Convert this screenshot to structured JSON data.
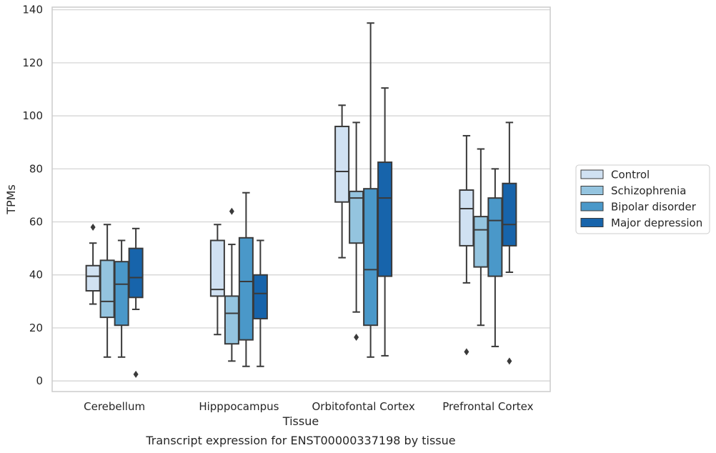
{
  "chart_data": {
    "type": "box",
    "title": "",
    "xlabel": "Tissue",
    "ylabel": "TPMs",
    "caption": "Transcript expression for ENST00000337198 by tissue",
    "categories": [
      "Cerebellum",
      "Hipppocampus",
      "Orbitofontal Cortex",
      "Prefrontal Cortex"
    ],
    "ylim": [
      -4,
      141
    ],
    "yticks": [
      0,
      20,
      40,
      60,
      80,
      100,
      120,
      140
    ],
    "grid": true,
    "legend_position": "right",
    "series": [
      {
        "name": "Control",
        "color": "#d0e1f2",
        "boxes": [
          {
            "whislo": 29,
            "q1": 34,
            "med": 39.5,
            "q3": 43.5,
            "whishi": 52,
            "fliers": [
              58
            ]
          },
          {
            "whislo": 17.5,
            "q1": 32,
            "med": 34.5,
            "q3": 53,
            "whishi": 59,
            "fliers": []
          },
          {
            "whislo": 46.5,
            "q1": 67.5,
            "med": 79,
            "q3": 96,
            "whishi": 104,
            "fliers": []
          },
          {
            "whislo": 37,
            "q1": 51,
            "med": 65,
            "q3": 72,
            "whishi": 92.5,
            "fliers": [
              11
            ]
          }
        ]
      },
      {
        "name": "Schizophrenia",
        "color": "#94c4df",
        "boxes": [
          {
            "whislo": 9,
            "q1": 24,
            "med": 30,
            "q3": 45.5,
            "whishi": 59,
            "fliers": []
          },
          {
            "whislo": 7.5,
            "q1": 14,
            "med": 25.5,
            "q3": 32,
            "whishi": 51.5,
            "fliers": [
              64
            ]
          },
          {
            "whislo": 26,
            "q1": 52,
            "med": 69,
            "q3": 71.5,
            "whishi": 97.5,
            "fliers": [
              16.5
            ]
          },
          {
            "whislo": 21,
            "q1": 43,
            "med": 57,
            "q3": 62,
            "whishi": 87.5,
            "fliers": []
          }
        ]
      },
      {
        "name": "Bipolar disorder",
        "color": "#4a98c9",
        "boxes": [
          {
            "whislo": 9,
            "q1": 21,
            "med": 36.5,
            "q3": 45,
            "whishi": 53,
            "fliers": []
          },
          {
            "whislo": 5.5,
            "q1": 15.5,
            "med": 37.5,
            "q3": 54,
            "whishi": 71,
            "fliers": []
          },
          {
            "whislo": 9,
            "q1": 21,
            "med": 42,
            "q3": 72.5,
            "whishi": 135,
            "fliers": []
          },
          {
            "whislo": 13,
            "q1": 39.5,
            "med": 60.5,
            "q3": 69,
            "whishi": 80,
            "fliers": []
          }
        ]
      },
      {
        "name": "Major depression",
        "color": "#1764ab",
        "boxes": [
          {
            "whislo": 27,
            "q1": 31.5,
            "med": 39,
            "q3": 50,
            "whishi": 57.5,
            "fliers": [
              2.5
            ]
          },
          {
            "whislo": 5.5,
            "q1": 23.5,
            "med": 33,
            "q3": 40,
            "whishi": 53,
            "fliers": []
          },
          {
            "whislo": 9.5,
            "q1": 39.5,
            "med": 69,
            "q3": 82.5,
            "whishi": 110.5,
            "fliers": []
          },
          {
            "whislo": 41,
            "q1": 51,
            "med": 59,
            "q3": 74.5,
            "whishi": 97.5,
            "fliers": [
              7.5
            ]
          }
        ]
      }
    ]
  }
}
